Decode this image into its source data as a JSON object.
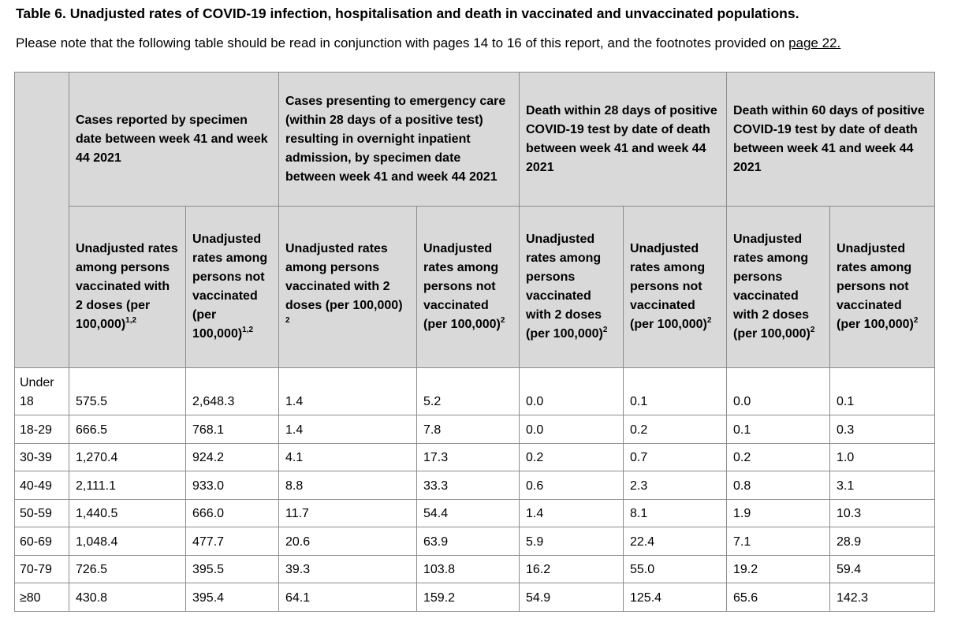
{
  "title": "Table 6. Unadjusted rates of COVID-19 infection, hospitalisation and death in vaccinated and unvaccinated populations.",
  "note_prefix": "Please note that the following table should be read in conjunction with pages 14 to 16 of this report, and the footnotes provided on ",
  "note_link": "page 22.",
  "groups": [
    "Cases reported by specimen date between week 41 and week 44 2021",
    "Cases presenting to emergency care (within 28 days of a positive test) resulting in overnight inpatient admission, by specimen date between week 41 and week 44 2021",
    "Death within 28 days of positive COVID-19 test by date of death between week 41 and week 44 2021",
    "Death within 60 days of positive COVID-19 test by date of death between week 41 and week 44 2021"
  ],
  "subheaders": [
    {
      "text": "Unadjusted rates among persons vaccinated with 2 doses (per 100,000)",
      "sup": "1,2"
    },
    {
      "text": "Unadjusted rates among persons not vaccinated (per 100,000)",
      "sup": "1,2"
    },
    {
      "text": "Unadjusted rates among persons vaccinated with 2 doses (per 100,000) ",
      "sup": "2"
    },
    {
      "text": "Unadjusted rates among persons not vaccinated (per 100,000)",
      "sup": "2"
    },
    {
      "text": "Unadjusted rates among persons vaccinated with 2 doses (per 100,000)",
      "sup": "2"
    },
    {
      "text": "Unadjusted rates among persons not vaccinated (per 100,000)",
      "sup": "2"
    },
    {
      "text": "Unadjusted rates among persons vaccinated with 2 doses (per 100,000)",
      "sup": "2"
    },
    {
      "text": "Unadjusted rates among persons not vaccinated (per 100,000)",
      "sup": "2"
    }
  ],
  "rows": [
    {
      "age": "Under 18",
      "values": [
        "575.5",
        "2,648.3",
        "1.4",
        "5.2",
        "0.0",
        "0.1",
        "0.0",
        "0.1"
      ]
    },
    {
      "age": "18-29",
      "values": [
        "666.5",
        "768.1",
        "1.4",
        "7.8",
        "0.0",
        "0.2",
        "0.1",
        "0.3"
      ]
    },
    {
      "age": "30-39",
      "values": [
        "1,270.4",
        "924.2",
        "4.1",
        "17.3",
        "0.2",
        "0.7",
        "0.2",
        "1.0"
      ]
    },
    {
      "age": "40-49",
      "values": [
        "2,111.1",
        "933.0",
        "8.8",
        "33.3",
        "0.6",
        "2.3",
        "0.8",
        "3.1"
      ]
    },
    {
      "age": "50-59",
      "values": [
        "1,440.5",
        "666.0",
        "11.7",
        "54.4",
        "1.4",
        "8.1",
        "1.9",
        "10.3"
      ]
    },
    {
      "age": "60-69",
      "values": [
        "1,048.4",
        "477.7",
        "20.6",
        "63.9",
        "5.9",
        "22.4",
        "7.1",
        "28.9"
      ]
    },
    {
      "age": "70-79",
      "values": [
        "726.5",
        "395.5",
        "39.3",
        "103.8",
        "16.2",
        "55.0",
        "19.2",
        "59.4"
      ]
    },
    {
      "age": "≥80",
      "values": [
        "430.8",
        "395.4",
        "64.1",
        "159.2",
        "54.9",
        "125.4",
        "65.6",
        "142.3"
      ]
    }
  ]
}
